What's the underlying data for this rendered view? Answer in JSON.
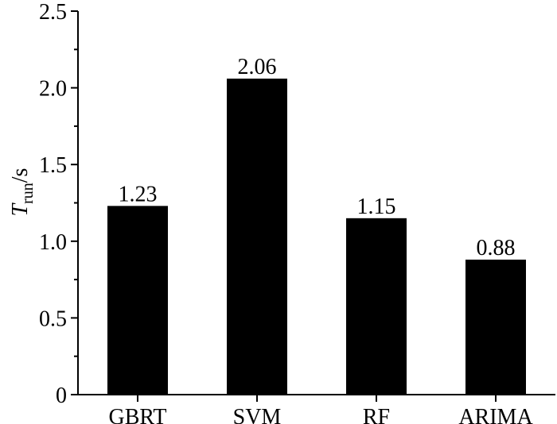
{
  "chart_data": {
    "type": "bar",
    "categories": [
      "GBRT",
      "SVM",
      "RF",
      "ARIMA"
    ],
    "values": [
      1.23,
      2.06,
      1.15,
      0.88
    ],
    "value_labels": [
      "1.23",
      "2.06",
      "1.15",
      "0.88"
    ],
    "title": "",
    "xlabel": "",
    "ylabel": {
      "symbol": "T",
      "subscript": "run",
      "unit": "/s"
    },
    "ylim": [
      0,
      2.5
    ],
    "yticks": [
      0,
      0.5,
      1.0,
      1.5,
      2.0,
      2.5
    ],
    "ytick_labels": [
      "0",
      "0.5",
      "1.0",
      "1.5",
      "2.0",
      "2.5"
    ],
    "grid": false,
    "legend": "none",
    "bar_color": "#000000"
  }
}
